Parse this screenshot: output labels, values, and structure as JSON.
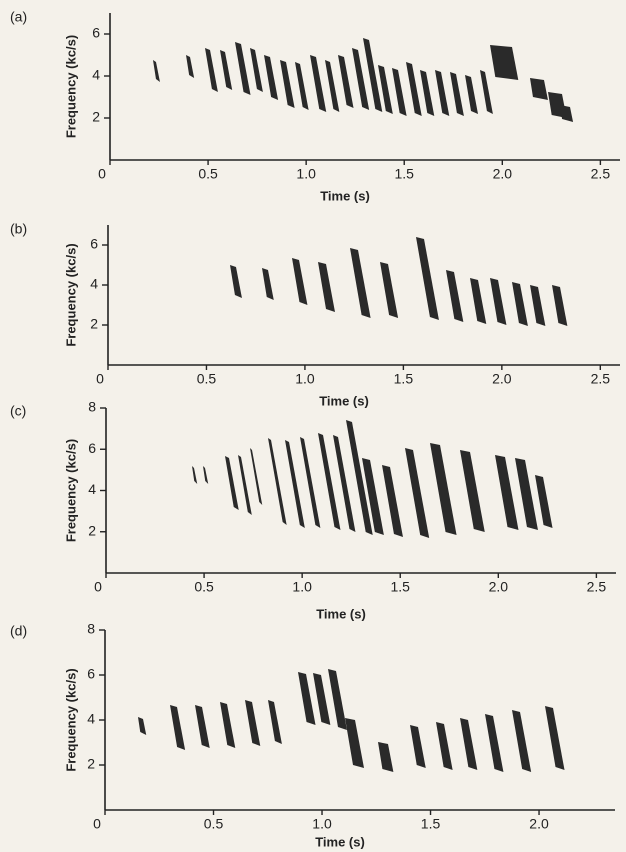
{
  "chart_data": [
    {
      "type": "sonogram",
      "panel_label": "(a)",
      "xlabel": "Time (s)",
      "ylabel": "Frequency (kc/s)",
      "xlim": [
        0,
        2.6
      ],
      "ylim": [
        0,
        7
      ],
      "yticks": [
        2,
        4,
        6
      ],
      "xticks": [
        0,
        0.5,
        {
          "value": 1,
          "label": "1.0"
        },
        1.5,
        {
          "value": 2,
          "label": "2.0"
        },
        2.5
      ]
    },
    {
      "type": "sonogram",
      "panel_label": "(b)",
      "xlabel": "Time (s)",
      "ylabel": "Frequency (kc/s)",
      "xlim": [
        0,
        2.6
      ],
      "ylim": [
        0,
        7
      ],
      "yticks": [
        2,
        4,
        6
      ],
      "xticks": [
        0,
        0.5,
        {
          "value": 1,
          "label": "1.0"
        },
        1.5,
        {
          "value": 2,
          "label": "2.0"
        },
        2.5
      ]
    },
    {
      "type": "sonogram",
      "panel_label": "(c)",
      "xlabel": "Time (s)",
      "ylabel": "Frequency (kc/s)",
      "xlim": [
        0,
        2.6
      ],
      "ylim": [
        0,
        8
      ],
      "yticks": [
        2,
        4,
        6,
        8
      ],
      "xticks": [
        0,
        0.5,
        {
          "value": 1,
          "label": "1.0"
        },
        1.5,
        {
          "value": 2,
          "label": "2.0"
        },
        2.5
      ]
    },
    {
      "type": "sonogram",
      "panel_label": "(d)",
      "xlabel": "Time (s)",
      "ylabel": "Frequency (kc/s)",
      "xlim": [
        0,
        2.35
      ],
      "ylim": [
        0,
        8
      ],
      "yticks": [
        2,
        4,
        6,
        8
      ],
      "xticks": [
        0,
        0.5,
        {
          "value": 1,
          "label": "1.0"
        },
        1.5,
        {
          "value": 2,
          "label": "2.0"
        }
      ]
    }
  ]
}
